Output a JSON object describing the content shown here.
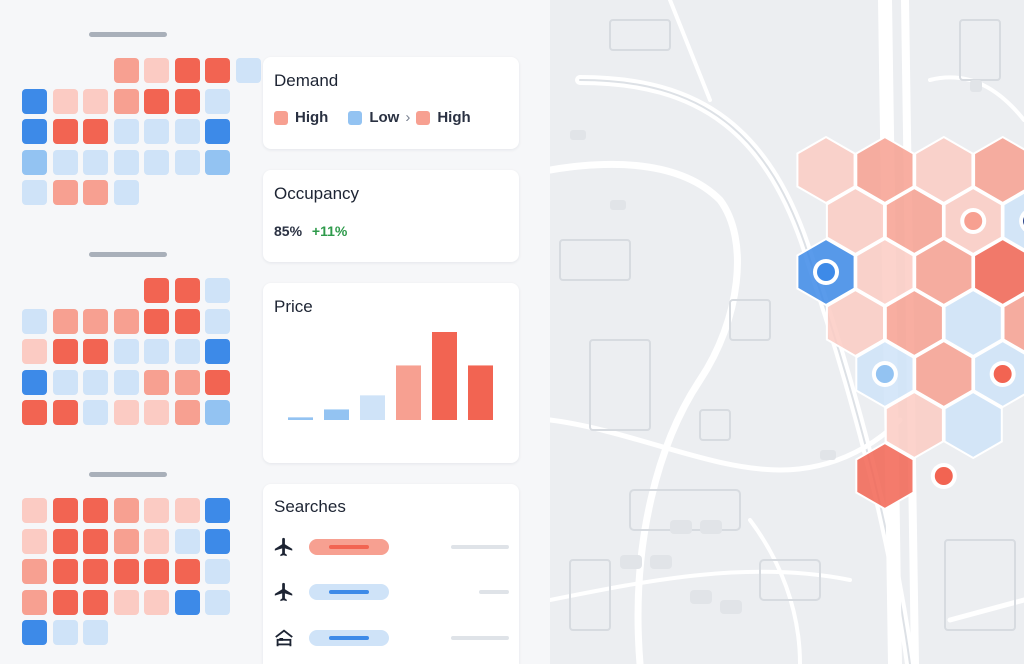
{
  "colors": {
    "high": "#f26452",
    "high_mid": "#f7a091",
    "high_low": "#fbcbc3",
    "low": "#3d8ae8",
    "low_mid": "#93c3f2",
    "low_light": "#cfe3f8",
    "dark_marker": "#0d2a7a"
  },
  "cards": {
    "demand": {
      "title": "Demand",
      "legend": [
        {
          "label": "High",
          "color": "#f7a091"
        },
        {
          "label": "Low",
          "color": "#93c3f2"
        },
        {
          "separator": "›"
        },
        {
          "label": "High",
          "color": "#f7a091"
        }
      ]
    },
    "occupancy": {
      "title": "Occupancy",
      "value": "85%",
      "delta": "+11%"
    },
    "price": {
      "title": "Price",
      "bar_levels": [
        0.03,
        0.12,
        0.28,
        0.62,
        1.0,
        0.62
      ]
    },
    "searches": {
      "title": "Searches",
      "rows": [
        {
          "icon": "airplane-icon",
          "tone": "high",
          "trail": 0.6
        },
        {
          "icon": "airplane-icon",
          "tone": "low",
          "trail": 0.3
        },
        {
          "icon": "hotel-bed-icon",
          "tone": "low",
          "trail": 0.6
        }
      ]
    }
  },
  "calendars": [
    {
      "rows": [
        [
          "",
          "",
          "",
          "m",
          "l",
          "h",
          "h",
          "b"
        ],
        [
          "B",
          "l",
          "l",
          "m",
          "h",
          "h",
          "b",
          ""
        ],
        [
          "B",
          "h",
          "h",
          "b",
          "b",
          "b",
          "B",
          ""
        ],
        [
          "a",
          "b",
          "b",
          "b",
          "b",
          "b",
          "a",
          ""
        ],
        [
          "b",
          "m",
          "m",
          "b",
          "",
          "",
          "",
          ""
        ]
      ]
    },
    {
      "rows": [
        [
          "",
          "",
          "",
          "",
          "h",
          "h",
          "b",
          ""
        ],
        [
          "b",
          "m",
          "m",
          "m",
          "h",
          "h",
          "b",
          ""
        ],
        [
          "l",
          "h",
          "h",
          "b",
          "b",
          "b",
          "B",
          ""
        ],
        [
          "B",
          "b",
          "b",
          "b",
          "m",
          "m",
          "h",
          ""
        ],
        [
          "h",
          "h",
          "b",
          "l",
          "l",
          "m",
          "a",
          ""
        ]
      ]
    },
    {
      "rows": [
        [
          "l",
          "h",
          "h",
          "m",
          "l",
          "l",
          "B",
          ""
        ],
        [
          "l",
          "h",
          "h",
          "m",
          "l",
          "b",
          "B",
          ""
        ],
        [
          "m",
          "h",
          "h",
          "h",
          "h",
          "h",
          "b",
          ""
        ],
        [
          "m",
          "h",
          "h",
          "l",
          "l",
          "B",
          "b",
          ""
        ],
        [
          "B",
          "b",
          "b",
          "",
          "",
          "",
          "",
          ""
        ]
      ]
    }
  ],
  "map": {
    "hexes": [
      {
        "c": 0,
        "r": 0,
        "tone": "l"
      },
      {
        "c": 1,
        "r": 0,
        "tone": "m"
      },
      {
        "c": 2,
        "r": 0,
        "tone": "l"
      },
      {
        "c": 3,
        "r": 0,
        "tone": "m"
      },
      {
        "c": 0,
        "r": 1,
        "tone": "l"
      },
      {
        "c": 1,
        "r": 1,
        "tone": "m"
      },
      {
        "c": 2,
        "r": 1,
        "tone": "l"
      },
      {
        "c": 3,
        "r": 1,
        "tone": "b"
      },
      {
        "c": 0,
        "r": 2,
        "tone": "B"
      },
      {
        "c": 1,
        "r": 2,
        "tone": "l"
      },
      {
        "c": 2,
        "r": 2,
        "tone": "m"
      },
      {
        "c": 3,
        "r": 2,
        "tone": "h"
      },
      {
        "c": 4,
        "r": 2,
        "tone": "a"
      },
      {
        "c": 0,
        "r": 3,
        "tone": "l"
      },
      {
        "c": 1,
        "r": 3,
        "tone": "m"
      },
      {
        "c": 2,
        "r": 3,
        "tone": "b"
      },
      {
        "c": 3,
        "r": 3,
        "tone": "m"
      },
      {
        "c": 1,
        "r": 4,
        "tone": "b"
      },
      {
        "c": 2,
        "r": 4,
        "tone": "m"
      },
      {
        "c": 3,
        "r": 4,
        "tone": "b"
      },
      {
        "c": 1,
        "r": 5,
        "tone": "l"
      },
      {
        "c": 2,
        "r": 5,
        "tone": "b"
      },
      {
        "c": 1,
        "r": 6,
        "tone": "h"
      }
    ],
    "markers": [
      {
        "at": [
          2,
          1
        ],
        "tone": "high_mid"
      },
      {
        "at": [
          3,
          1
        ],
        "tone": "dark_marker"
      },
      {
        "at": [
          0,
          2
        ],
        "tone": "low"
      },
      {
        "at": [
          1,
          4
        ],
        "tone": "low_mid"
      },
      {
        "at": [
          3,
          4
        ],
        "tone": "high"
      },
      {
        "at": [
          2,
          6
        ],
        "tone": "high"
      }
    ]
  }
}
